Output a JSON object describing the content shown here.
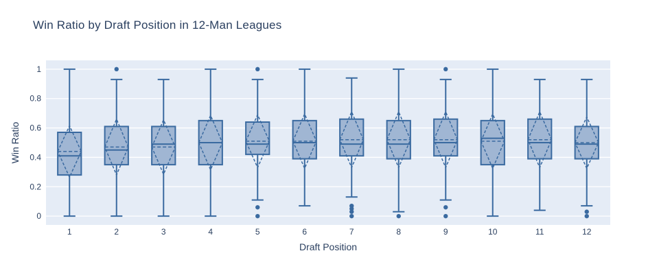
{
  "colors": {
    "page_bg": "#ffffff",
    "plot_bg": "#e5ecf6",
    "grid": "#ffffff",
    "text": "#2a3f5f",
    "box_line": "#3a6aa0",
    "box_fill": "#a0b6d3"
  },
  "chart_data": {
    "type": "box",
    "title": "Win Ratio by Draft Position in 12-Man Leagues",
    "xlabel": "Draft Position",
    "ylabel": "Win Ratio",
    "categories": [
      "1",
      "2",
      "3",
      "4",
      "5",
      "6",
      "7",
      "8",
      "9",
      "10",
      "11",
      "12"
    ],
    "yticks": [
      0,
      0.2,
      0.4,
      0.6,
      0.8,
      1
    ],
    "ytick_labels": [
      "0",
      "0.2",
      "0.4",
      "0.6",
      "0.8",
      "1"
    ],
    "ylim": [
      -0.06,
      1.06
    ],
    "grid": true,
    "legend_position": "none",
    "boxmean": "sd",
    "boxes": [
      {
        "category": "1",
        "whisker_low": 0.0,
        "q1": 0.28,
        "median": 0.41,
        "q3": 0.57,
        "whisker_high": 1.0,
        "mean": 0.44,
        "sd": 0.175,
        "outliers": []
      },
      {
        "category": "2",
        "whisker_low": 0.0,
        "q1": 0.35,
        "median": 0.45,
        "q3": 0.61,
        "whisker_high": 0.93,
        "mean": 0.47,
        "sd": 0.19,
        "outliers": [
          1.0
        ]
      },
      {
        "category": "3",
        "whisker_low": 0.0,
        "q1": 0.35,
        "median": 0.49,
        "q3": 0.61,
        "whisker_high": 0.93,
        "mean": 0.47,
        "sd": 0.185,
        "outliers": []
      },
      {
        "category": "4",
        "whisker_low": 0.0,
        "q1": 0.35,
        "median": 0.5,
        "q3": 0.65,
        "whisker_high": 1.0,
        "mean": 0.5,
        "sd": 0.185,
        "outliers": []
      },
      {
        "category": "5",
        "whisker_low": 0.11,
        "q1": 0.42,
        "median": 0.49,
        "q3": 0.64,
        "whisker_high": 0.93,
        "mean": 0.51,
        "sd": 0.18,
        "outliers": [
          1.0,
          0.06,
          0.0
        ]
      },
      {
        "category": "6",
        "whisker_low": 0.07,
        "q1": 0.39,
        "median": 0.5,
        "q3": 0.65,
        "whisker_high": 1.0,
        "mean": 0.51,
        "sd": 0.185,
        "outliers": []
      },
      {
        "category": "7",
        "whisker_low": 0.13,
        "q1": 0.41,
        "median": 0.49,
        "q3": 0.66,
        "whisker_high": 0.94,
        "mean": 0.52,
        "sd": 0.19,
        "outliers": [
          0.07,
          0.05,
          0.03,
          0.0
        ]
      },
      {
        "category": "8",
        "whisker_low": 0.03,
        "q1": 0.39,
        "median": 0.49,
        "q3": 0.65,
        "whisker_high": 1.0,
        "mean": 0.52,
        "sd": 0.19,
        "outliers": [
          0.0
        ]
      },
      {
        "category": "9",
        "whisker_low": 0.11,
        "q1": 0.41,
        "median": 0.5,
        "q3": 0.66,
        "whisker_high": 0.93,
        "mean": 0.52,
        "sd": 0.19,
        "outliers": [
          1.0,
          0.06,
          0.0
        ]
      },
      {
        "category": "10",
        "whisker_low": 0.0,
        "q1": 0.35,
        "median": 0.53,
        "q3": 0.65,
        "whisker_high": 1.0,
        "mean": 0.51,
        "sd": 0.185,
        "outliers": []
      },
      {
        "category": "11",
        "whisker_low": 0.04,
        "q1": 0.39,
        "median": 0.5,
        "q3": 0.66,
        "whisker_high": 0.93,
        "mean": 0.52,
        "sd": 0.19,
        "outliers": []
      },
      {
        "category": "12",
        "whisker_low": 0.07,
        "q1": 0.39,
        "median": 0.49,
        "q3": 0.61,
        "whisker_high": 0.93,
        "mean": 0.5,
        "sd": 0.175,
        "outliers": [
          0.03,
          0.0
        ]
      }
    ]
  }
}
